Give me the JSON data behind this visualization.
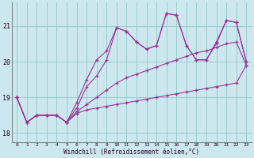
{
  "xlabel": "Windchill (Refroidissement éolien,°C)",
  "background_color": "#cce8ee",
  "line_color": "#993399",
  "grid_color": "#99cccc",
  "xlim": [
    -0.5,
    23.5
  ],
  "ylim": [
    17.75,
    21.65
  ],
  "xticks": [
    0,
    1,
    2,
    3,
    4,
    5,
    6,
    7,
    8,
    9,
    10,
    11,
    12,
    13,
    14,
    15,
    16,
    17,
    18,
    19,
    20,
    21,
    22,
    23
  ],
  "yticks": [
    18,
    19,
    20,
    21
  ],
  "lines": [
    [
      19.0,
      18.3,
      18.5,
      18.5,
      18.5,
      18.3,
      18.85,
      19.5,
      20.05,
      20.3,
      20.95,
      20.85,
      20.55,
      20.35,
      20.45,
      21.35,
      21.3,
      20.45,
      20.05,
      20.05,
      20.55,
      21.15,
      21.1,
      20.0
    ],
    [
      19.0,
      18.3,
      18.5,
      18.5,
      18.5,
      18.3,
      18.7,
      19.3,
      19.6,
      20.05,
      20.95,
      20.85,
      20.55,
      20.35,
      20.45,
      21.35,
      21.3,
      20.45,
      20.05,
      20.05,
      20.5,
      21.15,
      21.1,
      20.0
    ],
    [
      19.0,
      18.3,
      18.5,
      18.5,
      18.5,
      18.3,
      18.6,
      18.8,
      19.0,
      19.2,
      19.4,
      19.55,
      19.65,
      19.75,
      19.85,
      19.95,
      20.05,
      20.15,
      20.25,
      20.3,
      20.4,
      20.5,
      20.55,
      19.9
    ],
    [
      19.0,
      18.3,
      18.5,
      18.5,
      18.5,
      18.3,
      18.55,
      18.65,
      18.7,
      18.75,
      18.8,
      18.85,
      18.9,
      18.95,
      19.0,
      19.05,
      19.1,
      19.15,
      19.2,
      19.25,
      19.3,
      19.35,
      19.4,
      19.9
    ]
  ]
}
